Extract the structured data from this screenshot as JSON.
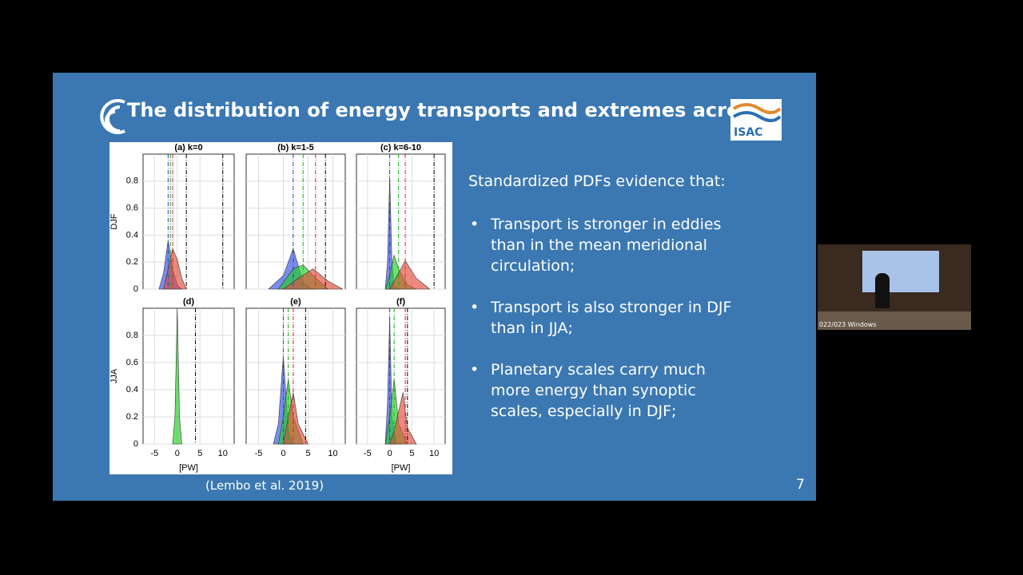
{
  "slide": {
    "title": "The distribution of energy transports and extremes across n",
    "logo_text": "ISAC",
    "intro": "Standardized PDFs evidence that:",
    "bullets": [
      "Transport is stronger in eddies than in the mean meridional circulation;",
      "Transport is also stronger in DJF than in JJA;",
      "Planetary scales carry much more energy than synoptic scales, especially in DJF;"
    ],
    "citation": "(Lembo et al. 2019)",
    "page_number": 7
  },
  "webcam": {
    "label": "022/023 Windows"
  },
  "figure": {
    "xlim": [
      -7.5,
      12.5
    ],
    "ylim": [
      0,
      1
    ],
    "xticks": [
      -5,
      0,
      5,
      10
    ],
    "yticks": [
      0,
      0.2,
      0.4,
      0.6,
      0.8
    ],
    "row_labels": [
      "DJF",
      "JJA"
    ],
    "xlabel": "[PW]",
    "panels": [
      {
        "title": "(a) k=0",
        "curves": [
          {
            "color": "#3350e6",
            "x": [
              -4,
              -3,
              -2,
              -1,
              0,
              1
            ],
            "values": [
              0,
              0.12,
              0.36,
              0.15,
              0.03,
              0
            ]
          },
          {
            "color": "#e24a3a",
            "x": [
              -3,
              -2,
              -1,
              0,
              1,
              2
            ],
            "values": [
              0,
              0.15,
              0.3,
              0.22,
              0.08,
              0
            ]
          }
        ],
        "lines": [
          {
            "color": "#2040c0",
            "value": -2
          },
          {
            "color": "#10b010",
            "value": -1.5
          },
          {
            "color": "#e02020",
            "value": -1
          },
          {
            "color": "#000000",
            "value": 2
          },
          {
            "color": "#000000",
            "value": 10
          }
        ]
      },
      {
        "title": "(b) k=1-5",
        "curves": [
          {
            "color": "#3350e6",
            "x": [
              -3,
              0,
              2,
              4,
              6
            ],
            "values": [
              0,
              0.1,
              0.3,
              0.05,
              0
            ]
          },
          {
            "color": "#22d022",
            "x": [
              -1,
              2,
              4,
              6,
              9
            ],
            "values": [
              0,
              0.15,
              0.18,
              0.1,
              0
            ]
          },
          {
            "color": "#e24a3a",
            "x": [
              0,
              3,
              6,
              9,
              12
            ],
            "values": [
              0,
              0.08,
              0.15,
              0.06,
              0
            ]
          }
        ],
        "lines": [
          {
            "color": "#2040c0",
            "value": 2
          },
          {
            "color": "#10b010",
            "value": 4
          },
          {
            "color": "#e02020",
            "value": 6.5
          },
          {
            "color": "#000000",
            "value": 8.5
          }
        ]
      },
      {
        "title": "(c) k=6-10",
        "curves": [
          {
            "color": "#3350e6",
            "x": [
              -1,
              -0.5,
              0,
              0.5,
              1,
              2
            ],
            "values": [
              0,
              0.2,
              0.83,
              0.2,
              0.02,
              0
            ]
          },
          {
            "color": "#22d022",
            "x": [
              -1,
              0,
              1,
              2,
              4,
              6
            ],
            "values": [
              0,
              0.1,
              0.25,
              0.15,
              0.03,
              0
            ]
          },
          {
            "color": "#e24a3a",
            "x": [
              0,
              2,
              3.5,
              6,
              9
            ],
            "values": [
              0,
              0.12,
              0.21,
              0.08,
              0
            ]
          }
        ],
        "lines": [
          {
            "color": "#2040c0",
            "value": 0
          },
          {
            "color": "#10b010",
            "value": 2
          },
          {
            "color": "#e02020",
            "value": 3.5
          },
          {
            "color": "#000000",
            "value": 10
          }
        ]
      },
      {
        "title": "(d)",
        "curves": [
          {
            "color": "#22d022",
            "x": [
              -1,
              -0.5,
              0,
              0.5,
              1
            ],
            "values": [
              0,
              0.2,
              1,
              0.2,
              0
            ]
          }
        ],
        "lines": [
          {
            "color": "#000000",
            "value": 4
          }
        ]
      },
      {
        "title": "(e)",
        "curves": [
          {
            "color": "#3350e6",
            "x": [
              -2,
              -1,
              0,
              1,
              2
            ],
            "values": [
              0,
              0.15,
              0.65,
              0.1,
              0
            ]
          },
          {
            "color": "#22d022",
            "x": [
              -1,
              0,
              1,
              2,
              4
            ],
            "values": [
              0,
              0.2,
              0.48,
              0.2,
              0
            ]
          },
          {
            "color": "#e24a3a",
            "x": [
              0,
              1,
              2,
              3,
              5
            ],
            "values": [
              0,
              0.2,
              0.38,
              0.15,
              0
            ]
          }
        ],
        "lines": [
          {
            "color": "#2040c0",
            "value": 0
          },
          {
            "color": "#10b010",
            "value": 1
          },
          {
            "color": "#e02020",
            "value": 2
          },
          {
            "color": "#000000",
            "value": 4.5
          }
        ]
      },
      {
        "title": "(f)",
        "curves": [
          {
            "color": "#3350e6",
            "x": [
              -1,
              -0.5,
              0,
              0.5,
              1.5
            ],
            "values": [
              0,
              0.3,
              0.93,
              0.2,
              0
            ]
          },
          {
            "color": "#22d022",
            "x": [
              -1,
              0,
              1,
              2,
              4
            ],
            "values": [
              0,
              0.2,
              0.48,
              0.15,
              0
            ]
          },
          {
            "color": "#e24a3a",
            "x": [
              0,
              1,
              3,
              4,
              6
            ],
            "values": [
              0,
              0.1,
              0.38,
              0.12,
              0
            ]
          }
        ],
        "lines": [
          {
            "color": "#2040c0",
            "value": 0
          },
          {
            "color": "#10b010",
            "value": 1
          },
          {
            "color": "#e02020",
            "value": 3.5
          },
          {
            "color": "#000000",
            "value": 4
          }
        ]
      }
    ]
  }
}
